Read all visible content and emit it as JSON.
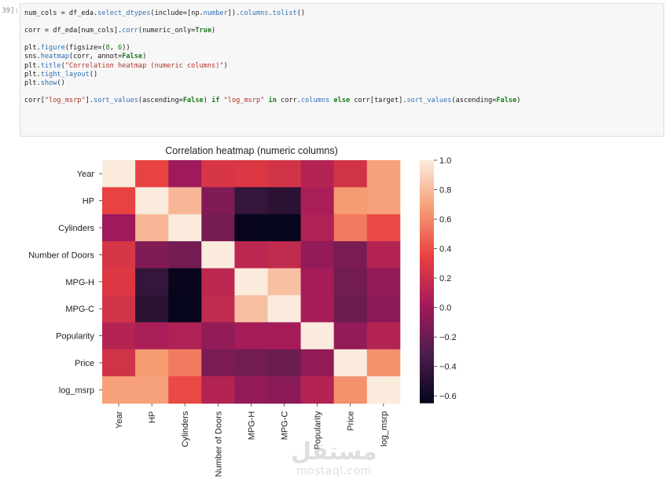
{
  "notebook": {
    "prompt": "39]:",
    "code_lines": [
      [
        {
          "t": "num_cols = df_eda.",
          "c": ""
        },
        {
          "t": "select_dtypes",
          "c": "fn"
        },
        {
          "t": "(include=[np.",
          "c": ""
        },
        {
          "t": "number",
          "c": "fn"
        },
        {
          "t": "]).",
          "c": ""
        },
        {
          "t": "columns",
          "c": "fn"
        },
        {
          "t": ".",
          "c": ""
        },
        {
          "t": "tolist",
          "c": "fn"
        },
        {
          "t": "()",
          "c": ""
        }
      ],
      [],
      [
        {
          "t": "corr = df_eda[num_cols].",
          "c": ""
        },
        {
          "t": "corr",
          "c": "fn"
        },
        {
          "t": "(numeric_only=",
          "c": ""
        },
        {
          "t": "True",
          "c": "kw"
        },
        {
          "t": ")",
          "c": ""
        }
      ],
      [],
      [
        {
          "t": "plt.",
          "c": ""
        },
        {
          "t": "figure",
          "c": "fn"
        },
        {
          "t": "(figsize=(",
          "c": ""
        },
        {
          "t": "8",
          "c": "num"
        },
        {
          "t": ", ",
          "c": ""
        },
        {
          "t": "6",
          "c": "num"
        },
        {
          "t": "))",
          "c": ""
        }
      ],
      [
        {
          "t": "sns.",
          "c": ""
        },
        {
          "t": "heatmap",
          "c": "fn"
        },
        {
          "t": "(corr, annot=",
          "c": ""
        },
        {
          "t": "False",
          "c": "kw"
        },
        {
          "t": ")",
          "c": ""
        }
      ],
      [
        {
          "t": "plt.",
          "c": ""
        },
        {
          "t": "title",
          "c": "fn"
        },
        {
          "t": "(",
          "c": ""
        },
        {
          "t": "\"Correlation heatmap (numeric columns)\"",
          "c": "str"
        },
        {
          "t": ")",
          "c": ""
        }
      ],
      [
        {
          "t": "plt.",
          "c": ""
        },
        {
          "t": "tight_layout",
          "c": "fn"
        },
        {
          "t": "()",
          "c": ""
        }
      ],
      [
        {
          "t": "plt.",
          "c": ""
        },
        {
          "t": "show",
          "c": "fn"
        },
        {
          "t": "()",
          "c": ""
        }
      ],
      [],
      [
        {
          "t": "corr[",
          "c": ""
        },
        {
          "t": "\"log_msrp\"",
          "c": "str"
        },
        {
          "t": "].",
          "c": ""
        },
        {
          "t": "sort_values",
          "c": "fn"
        },
        {
          "t": "(ascending=",
          "c": ""
        },
        {
          "t": "False",
          "c": "kw"
        },
        {
          "t": ") ",
          "c": ""
        },
        {
          "t": "if",
          "c": "kw"
        },
        {
          "t": " ",
          "c": ""
        },
        {
          "t": "\"log_msrp\"",
          "c": "str"
        },
        {
          "t": " ",
          "c": ""
        },
        {
          "t": "in",
          "c": "kw"
        },
        {
          "t": " corr.",
          "c": ""
        },
        {
          "t": "columns",
          "c": "fn"
        },
        {
          "t": " ",
          "c": ""
        },
        {
          "t": "else",
          "c": "kw"
        },
        {
          "t": " corr[target].",
          "c": ""
        },
        {
          "t": "sort_values",
          "c": "fn"
        },
        {
          "t": "(ascending=",
          "c": ""
        },
        {
          "t": "False",
          "c": "kw"
        },
        {
          "t": ")",
          "c": ""
        }
      ]
    ]
  },
  "chart_data": {
    "type": "heatmap",
    "title": "Correlation heatmap (numeric columns)",
    "x_labels": [
      "Year",
      "HP",
      "Cylinders",
      "Number of Doors",
      "MPG-H",
      "MPG-C",
      "Popularity",
      "Price",
      "log_msrp"
    ],
    "y_labels": [
      "Year",
      "HP",
      "Cylinders",
      "Number of Doors",
      "MPG-H",
      "MPG-C",
      "Popularity",
      "Price",
      "log_msrp"
    ],
    "values": [
      [
        1.0,
        0.35,
        0.0,
        0.26,
        0.28,
        0.24,
        0.1,
        0.23,
        0.69
      ],
      [
        0.35,
        1.0,
        0.78,
        -0.12,
        -0.43,
        -0.47,
        0.05,
        0.67,
        0.69
      ],
      [
        0.0,
        0.78,
        1.0,
        -0.16,
        -0.63,
        -0.64,
        0.08,
        0.55,
        0.38
      ],
      [
        0.26,
        -0.12,
        -0.16,
        1.0,
        0.13,
        0.16,
        -0.05,
        -0.14,
        0.1
      ],
      [
        0.28,
        -0.43,
        -0.63,
        0.13,
        1.0,
        0.82,
        0.03,
        -0.17,
        -0.05
      ],
      [
        0.24,
        -0.47,
        -0.64,
        0.16,
        0.82,
        1.0,
        0.03,
        -0.2,
        -0.08
      ],
      [
        0.1,
        0.05,
        0.08,
        -0.05,
        0.03,
        0.03,
        1.0,
        -0.05,
        0.1
      ],
      [
        0.23,
        0.67,
        0.55,
        -0.14,
        -0.17,
        -0.2,
        -0.05,
        1.0,
        0.63
      ],
      [
        0.69,
        0.69,
        0.38,
        0.1,
        -0.05,
        -0.08,
        0.1,
        0.63,
        1.0
      ]
    ],
    "colorbar": {
      "min": -0.65,
      "max": 1.0,
      "ticks": [
        1.0,
        0.8,
        0.6,
        0.4,
        0.2,
        0.0,
        -0.2,
        -0.4,
        -0.6
      ],
      "tick_labels": [
        "1.0",
        "0.8",
        "0.6",
        "0.4",
        "0.2",
        "0.0",
        "−0.2",
        "−0.4",
        "−0.6"
      ]
    },
    "colormap": [
      "#03051a",
      "#4c1d4b",
      "#a11a5b",
      "#e83f3f",
      "#f69c73",
      "#faebdd"
    ]
  },
  "watermark": {
    "arabic": "مستقل",
    "latin": "mostaql.com"
  }
}
